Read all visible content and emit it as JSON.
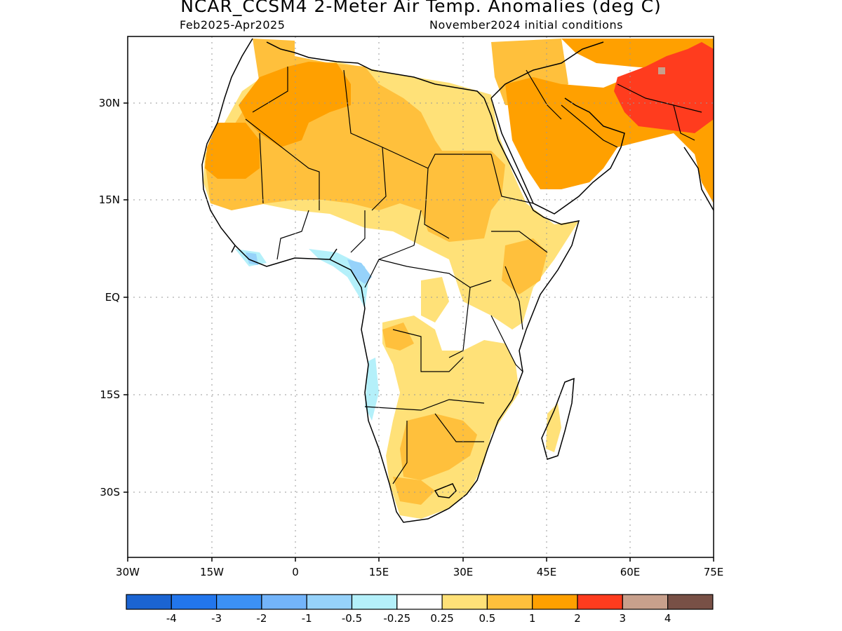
{
  "title": "NCAR_CCSM4 2-Meter Air Temp. Anomalies (deg C)",
  "subtitle_left": "Feb2025-Apr2025",
  "subtitle_right": "November2024 initial conditions",
  "y_ticks": [
    "30N",
    "15N",
    "EQ",
    "15S",
    "30S"
  ],
  "x_ticks": [
    "30W",
    "15W",
    "0",
    "15E",
    "30E",
    "45E",
    "60E",
    "75E"
  ],
  "legend": {
    "colors": [
      "#1b64d2",
      "#2276ec",
      "#3c91f5",
      "#73b4fa",
      "#96d2fa",
      "#b4f0fa",
      "#ffffff",
      "#ffe178",
      "#ffc03c",
      "#ffa000",
      "#ff3c1e",
      "#c8a08c",
      "#785046"
    ],
    "labels": [
      "-4",
      "-3",
      "-2",
      "-1",
      "-0.5",
      "-0.25",
      "0.25",
      "0.5",
      "1",
      "2",
      "3",
      "4"
    ]
  },
  "anomaly_colors": {
    "light_blue": "#b4f0fa",
    "blue": "#96d2fa",
    "yellow": "#ffe178",
    "light_orange": "#ffc03c",
    "orange": "#ffa000",
    "red": "#ff3c1e",
    "brown": "#c8a08c"
  }
}
